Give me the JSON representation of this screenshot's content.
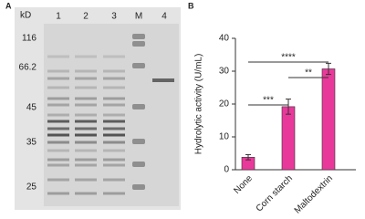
{
  "panel_a": {
    "label": "A",
    "unit": "kD",
    "lanes": [
      "1",
      "2",
      "3",
      "M",
      "4"
    ],
    "markers": [
      "116",
      "66.2",
      "45",
      "35",
      "25"
    ]
  },
  "chart_data": {
    "type": "bar",
    "label": "B",
    "ylabel": "Hydrolytic activity (U/mL)",
    "categories": [
      "None",
      "Corn starch",
      "Maltodextrin"
    ],
    "values": [
      3.8,
      19.2,
      30.7
    ],
    "errors": [
      0.8,
      2.3,
      1.7
    ],
    "color": "#e8399a",
    "ylim": [
      0,
      40
    ],
    "yticks": [
      0,
      10,
      20,
      30,
      40
    ],
    "annotations": [
      {
        "text": "****",
        "between": [
          "None",
          "Maltodextrin"
        ]
      },
      {
        "text": "**",
        "between": [
          "Corn starch",
          "Maltodextrin"
        ]
      },
      {
        "text": "***",
        "between": [
          "None",
          "Corn starch"
        ]
      }
    ]
  }
}
